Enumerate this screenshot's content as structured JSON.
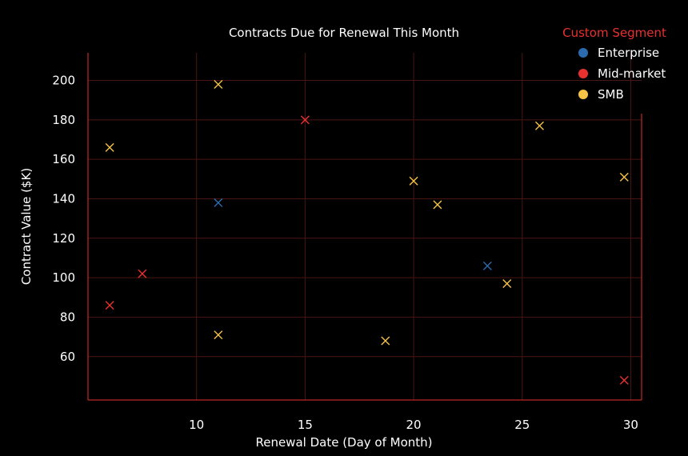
{
  "chart_data": {
    "type": "scatter",
    "title": "Contracts Due for Renewal This Month",
    "xlabel": "Renewal Date (Day of Month)",
    "ylabel": "Contract Value ($K)",
    "xlim": [
      5,
      30.5
    ],
    "ylim": [
      38,
      214
    ],
    "x_ticks": [
      10,
      15,
      20,
      25,
      30
    ],
    "y_ticks": [
      60,
      80,
      100,
      120,
      140,
      160,
      180,
      200
    ],
    "grid": true,
    "legend_placement": "top-right",
    "legend_title": "Custom Segment",
    "marker": "x",
    "series": [
      {
        "name": "Enterprise",
        "color": "#2b6cb0",
        "points": [
          [
            11,
            138
          ],
          [
            23.4,
            106
          ]
        ]
      },
      {
        "name": "Mid-market",
        "color": "#e8312f",
        "points": [
          [
            6,
            86
          ],
          [
            7.5,
            102
          ],
          [
            15,
            180
          ],
          [
            29.7,
            48
          ]
        ]
      },
      {
        "name": "SMB",
        "color": "#f6c344",
        "points": [
          [
            6,
            166
          ],
          [
            11,
            198
          ],
          [
            11,
            71
          ],
          [
            18.7,
            68
          ],
          [
            20,
            149
          ],
          [
            21.1,
            137
          ],
          [
            24.3,
            97
          ],
          [
            25.8,
            177
          ],
          [
            29.7,
            151
          ]
        ]
      }
    ]
  }
}
